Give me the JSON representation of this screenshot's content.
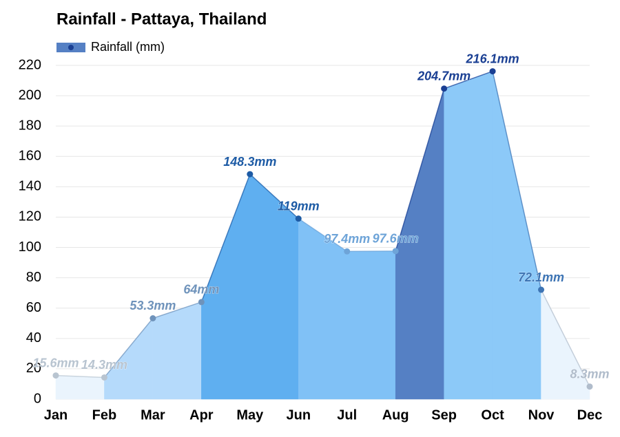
{
  "chart_data": {
    "type": "area",
    "title": "Rainfall - Pattaya, Thailand",
    "categories": [
      "Jan",
      "Feb",
      "Mar",
      "Apr",
      "May",
      "Jun",
      "Jul",
      "Aug",
      "Sep",
      "Oct",
      "Nov",
      "Dec"
    ],
    "series": [
      {
        "name": "Rainfall (mm)",
        "color": "#5580c4",
        "values": [
          15.6,
          14.3,
          53.3,
          64,
          148.3,
          119,
          97.4,
          97.6,
          204.7,
          216.1,
          72.1,
          8.3
        ],
        "value_labels": [
          "15.6mm",
          "14.3mm",
          "53.3mm",
          "64mm",
          "148.3mm",
          "119mm",
          "97.4mm",
          "97.6mm",
          "204.7mm",
          "216.1mm",
          "72.1mm",
          "8.3mm"
        ],
        "point_colors": [
          "#b8c4d0",
          "#b8c4d0",
          "#6f93bb",
          "#6f93bb",
          "#1d5ba5",
          "#1d5ba5",
          "#6ea4d8",
          "#6ea4d8",
          "#1a3f93",
          "#1a3f93",
          "#3d74b4",
          "#b0bccb"
        ],
        "segment_colors": [
          "#eaf4fd",
          "#b5dafb",
          "#b5dafb",
          "#5faff0",
          "#5faff0",
          "#80c1f6",
          "#80c1f6",
          "#5580c4",
          "#8cc9f8",
          "#8cc9f8",
          "#eaf4fd"
        ]
      }
    ],
    "ylim": [
      0,
      220
    ],
    "yticks": [
      0,
      20,
      40,
      60,
      80,
      100,
      120,
      140,
      160,
      180,
      200,
      220
    ],
    "grid": true
  }
}
